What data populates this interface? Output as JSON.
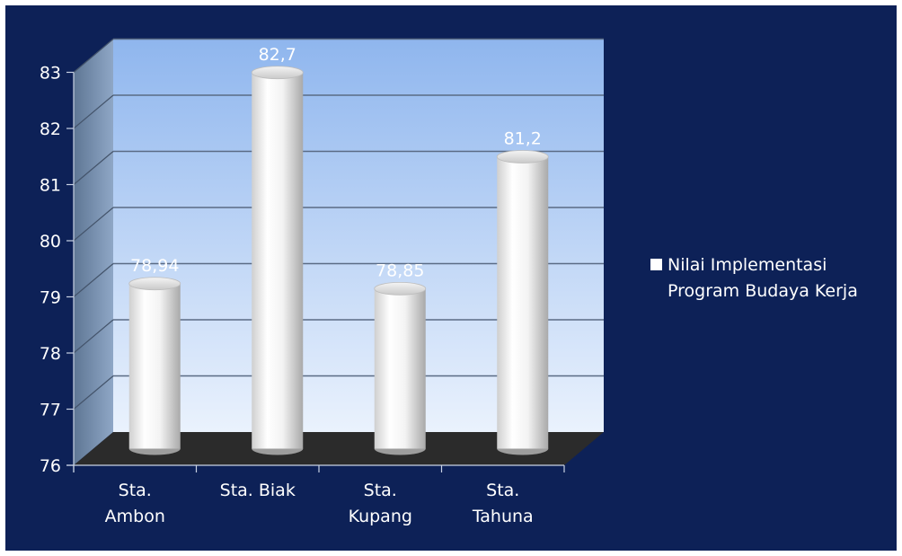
{
  "chart_data": {
    "type": "bar",
    "style": "3d-cylinder",
    "categories": [
      [
        "Sta.",
        "Ambon"
      ],
      [
        "Sta. Biak"
      ],
      [
        "Sta.",
        "Kupang"
      ],
      [
        "Sta.",
        "Tahuna"
      ]
    ],
    "series": [
      {
        "name": "Nilai Implementasi Program Budaya Kerja",
        "name_lines": [
          "Nilai Implementasi",
          "Program Budaya Kerja"
        ],
        "values": [
          78.94,
          82.7,
          78.85,
          81.2
        ],
        "data_labels": [
          "78,94",
          "82,7",
          "78,85",
          "81,2"
        ]
      }
    ],
    "ylim": [
      76,
      83
    ],
    "yticks": [
      "76",
      "77",
      "78",
      "79",
      "80",
      "81",
      "82",
      "83"
    ],
    "grid": true,
    "legend_position": "right",
    "colors": {
      "background": "#0d2157",
      "wall_top": "#8fb6ee",
      "wall_bottom": "#eaf2fd",
      "floor": "#2b2b2b",
      "bar": "#ffffff",
      "text": "#ffffff"
    }
  }
}
